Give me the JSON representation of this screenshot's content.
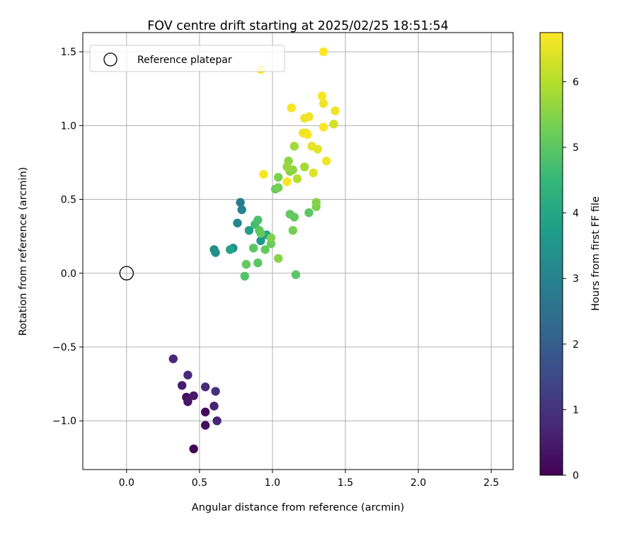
{
  "chart_data": {
    "type": "scatter",
    "title": "FOV centre drift starting at 2025/02/25 18:51:54",
    "xlabel": "Angular distance from reference (arcmin)",
    "ylabel": "Rotation from reference (arcmin)",
    "xlim": [
      -0.3,
      2.65
    ],
    "ylim": [
      -1.33,
      1.63
    ],
    "x_ticks": [
      0.0,
      0.5,
      1.0,
      1.5,
      2.0,
      2.5
    ],
    "x_tick_labels": [
      "0.0",
      "0.5",
      "1.0",
      "1.5",
      "2.0",
      "2.5"
    ],
    "y_ticks": [
      -1.0,
      -0.5,
      0.0,
      0.5,
      1.0,
      1.5
    ],
    "y_tick_labels": [
      "−1.0",
      "−0.5",
      "0.0",
      "0.5",
      "1.0",
      "1.5"
    ],
    "grid": true,
    "legend": {
      "position": "top-left",
      "entries": [
        "Reference platepar"
      ]
    },
    "reference_point": {
      "x": 0.0,
      "y": 0.0,
      "marker": "open-circle"
    },
    "colorbar": {
      "label": "Hours from first FF file",
      "colormap": "viridis",
      "range": [
        0,
        6.75
      ],
      "ticks": [
        0,
        1,
        2,
        3,
        4,
        5,
        6
      ],
      "tick_labels": [
        "0",
        "1",
        "2",
        "3",
        "4",
        "5",
        "6"
      ]
    },
    "colormap_stops": [
      "#440154",
      "#482878",
      "#3e4989",
      "#31688e",
      "#26828e",
      "#1f9e89",
      "#35b779",
      "#6ece58",
      "#b5de2b",
      "#fde725"
    ],
    "points": [
      {
        "x": 0.46,
        "y": -1.19,
        "t": 0.05
      },
      {
        "x": 0.54,
        "y": -0.94,
        "t": 0.2
      },
      {
        "x": 0.54,
        "y": -1.03,
        "t": 0.3
      },
      {
        "x": 0.41,
        "y": -0.84,
        "t": 0.25
      },
      {
        "x": 0.42,
        "y": -0.87,
        "t": 0.4
      },
      {
        "x": 0.46,
        "y": -0.83,
        "t": 0.5
      },
      {
        "x": 0.38,
        "y": -0.76,
        "t": 0.55
      },
      {
        "x": 0.6,
        "y": -0.9,
        "t": 0.65
      },
      {
        "x": 0.62,
        "y": -1.0,
        "t": 0.7
      },
      {
        "x": 0.42,
        "y": -0.69,
        "t": 0.8
      },
      {
        "x": 0.54,
        "y": -0.77,
        "t": 0.85
      },
      {
        "x": 0.61,
        "y": -0.8,
        "t": 0.95
      },
      {
        "x": 0.32,
        "y": -0.58,
        "t": 0.75
      },
      {
        "x": 0.78,
        "y": 0.48,
        "t": 2.8
      },
      {
        "x": 0.79,
        "y": 0.43,
        "t": 3.0
      },
      {
        "x": 0.76,
        "y": 0.34,
        "t": 3.1
      },
      {
        "x": 0.6,
        "y": 0.16,
        "t": 3.3
      },
      {
        "x": 0.61,
        "y": 0.14,
        "t": 3.4
      },
      {
        "x": 0.73,
        "y": 0.17,
        "t": 3.3
      },
      {
        "x": 0.71,
        "y": 0.16,
        "t": 3.9
      },
      {
        "x": 0.84,
        "y": 0.29,
        "t": 3.8
      },
      {
        "x": 0.92,
        "y": 0.22,
        "t": 3.6
      },
      {
        "x": 0.96,
        "y": 0.26,
        "t": 4.0
      },
      {
        "x": 0.88,
        "y": 0.33,
        "t": 4.7
      },
      {
        "x": 0.9,
        "y": 0.36,
        "t": 4.8
      },
      {
        "x": 0.91,
        "y": 0.29,
        "t": 5.0
      },
      {
        "x": 0.92,
        "y": 0.27,
        "t": 5.1
      },
      {
        "x": 0.87,
        "y": 0.17,
        "t": 5.0
      },
      {
        "x": 0.95,
        "y": 0.16,
        "t": 5.1
      },
      {
        "x": 0.99,
        "y": 0.2,
        "t": 5.2
      },
      {
        "x": 0.99,
        "y": 0.24,
        "t": 5.4
      },
      {
        "x": 0.82,
        "y": 0.06,
        "t": 5.1
      },
      {
        "x": 0.9,
        "y": 0.07,
        "t": 5.0
      },
      {
        "x": 0.81,
        "y": -0.02,
        "t": 4.9
      },
      {
        "x": 1.04,
        "y": 0.1,
        "t": 5.5
      },
      {
        "x": 1.16,
        "y": -0.01,
        "t": 5.0
      },
      {
        "x": 1.12,
        "y": 0.4,
        "t": 5.1
      },
      {
        "x": 1.15,
        "y": 0.38,
        "t": 5.1
      },
      {
        "x": 1.14,
        "y": 0.29,
        "t": 5.3
      },
      {
        "x": 1.25,
        "y": 0.41,
        "t": 5.0
      },
      {
        "x": 1.3,
        "y": 0.48,
        "t": 5.5
      },
      {
        "x": 1.3,
        "y": 0.45,
        "t": 5.4
      },
      {
        "x": 1.02,
        "y": 0.57,
        "t": 5.2
      },
      {
        "x": 1.04,
        "y": 0.58,
        "t": 5.3
      },
      {
        "x": 1.04,
        "y": 0.65,
        "t": 5.4
      },
      {
        "x": 1.1,
        "y": 0.62,
        "t": 6.7
      },
      {
        "x": 1.12,
        "y": 0.69,
        "t": 5.5
      },
      {
        "x": 1.14,
        "y": 0.7,
        "t": 5.6
      },
      {
        "x": 1.1,
        "y": 0.72,
        "t": 5.7
      },
      {
        "x": 1.11,
        "y": 0.76,
        "t": 5.6
      },
      {
        "x": 1.17,
        "y": 0.64,
        "t": 6.0
      },
      {
        "x": 1.22,
        "y": 0.72,
        "t": 5.8
      },
      {
        "x": 1.15,
        "y": 0.86,
        "t": 5.8
      },
      {
        "x": 0.94,
        "y": 0.67,
        "t": 6.7
      },
      {
        "x": 1.28,
        "y": 0.68,
        "t": 6.4
      },
      {
        "x": 1.37,
        "y": 0.76,
        "t": 6.6
      },
      {
        "x": 1.27,
        "y": 0.86,
        "t": 6.5
      },
      {
        "x": 1.31,
        "y": 0.84,
        "t": 6.5
      },
      {
        "x": 1.21,
        "y": 0.95,
        "t": 6.6
      },
      {
        "x": 1.23,
        "y": 0.95,
        "t": 6.5
      },
      {
        "x": 1.24,
        "y": 0.94,
        "t": 6.7
      },
      {
        "x": 1.22,
        "y": 1.05,
        "t": 6.6
      },
      {
        "x": 1.25,
        "y": 1.06,
        "t": 6.6
      },
      {
        "x": 1.13,
        "y": 1.12,
        "t": 6.7
      },
      {
        "x": 1.35,
        "y": 0.99,
        "t": 6.7
      },
      {
        "x": 1.42,
        "y": 1.01,
        "t": 6.3
      },
      {
        "x": 1.43,
        "y": 1.1,
        "t": 6.6
      },
      {
        "x": 1.34,
        "y": 1.2,
        "t": 6.7
      },
      {
        "x": 1.35,
        "y": 1.15,
        "t": 6.6
      },
      {
        "x": 0.92,
        "y": 1.38,
        "t": 6.7
      },
      {
        "x": 1.35,
        "y": 1.5,
        "t": 6.75
      }
    ]
  }
}
